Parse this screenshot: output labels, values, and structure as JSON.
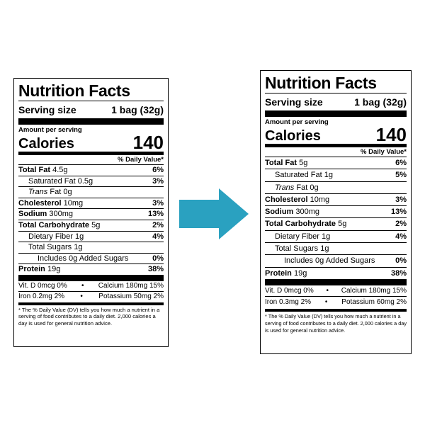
{
  "left": {
    "title": "Nutrition Facts",
    "serving_label": "Serving size",
    "serving_value": "1 bag (32g)",
    "amount_per_serving": "Amount per serving",
    "calories_label": "Calories",
    "calories_value": "140",
    "dv_header": "% Daily Value*",
    "total_fat_label": "Total Fat",
    "total_fat_amt": "4.5g",
    "total_fat_pct": "6%",
    "sat_fat_label": "Saturated Fat 0.5g",
    "sat_fat_pct": "3%",
    "trans_fat_label": "Trans",
    "trans_fat_rest": "Fat 0g",
    "chol_label": "Cholesterol",
    "chol_amt": "10mg",
    "chol_pct": "3%",
    "sodium_label": "Sodium",
    "sodium_amt": "300mg",
    "sodium_pct": "13%",
    "carb_label": "Total Carbohydrate",
    "carb_amt": "5g",
    "carb_pct": "2%",
    "fiber_label": "Dietary Fiber 1g",
    "fiber_pct": "4%",
    "sugars_label": "Total Sugars 1g",
    "added_label": "Includes 0g Added Sugars",
    "added_pct": "0%",
    "protein_label": "Protein",
    "protein_amt": "19g",
    "protein_pct": "38%",
    "vitd": "Vit. D 0mcg 0%",
    "calcium": "Calcium 180mg 15%",
    "iron": "Iron 0.2mg 2%",
    "potassium": "Potassium 50mg 2%",
    "footnote": "* The % Daily Value (DV) tells you how much a nutrient in a serving of food contributes to a daily diet. 2,000 calories a day is used for general nutrition advice."
  },
  "right": {
    "title": "Nutrition Facts",
    "serving_label": "Serving size",
    "serving_value": "1 bag (32g)",
    "amount_per_serving": "Amount per serving",
    "calories_label": "Calories",
    "calories_value": "140",
    "dv_header": "% Daily Value*",
    "total_fat_label": "Total Fat",
    "total_fat_amt": "5g",
    "total_fat_pct": "6%",
    "sat_fat_label": "Saturated Fat 1g",
    "sat_fat_pct": "5%",
    "trans_fat_label": "Trans",
    "trans_fat_rest": "Fat 0g",
    "chol_label": "Cholesterol",
    "chol_amt": "10mg",
    "chol_pct": "3%",
    "sodium_label": "Sodium",
    "sodium_amt": "300mg",
    "sodium_pct": "13%",
    "carb_label": "Total Carbohydrate",
    "carb_amt": "5g",
    "carb_pct": "2%",
    "fiber_label": "Dietary Fiber 1g",
    "fiber_pct": "4%",
    "sugars_label": "Total Sugars 1g",
    "added_label": "Includes 0g Added Sugars",
    "added_pct": "0%",
    "protein_label": "Protein",
    "protein_amt": "19g",
    "protein_pct": "38%",
    "vitd": "Vit. D 0mcg 0%",
    "calcium": "Calcium 180mg 15%",
    "iron": "Iron 0.3mg 2%",
    "potassium": "Potassium 60mg 2%",
    "footnote": "* The % Daily Value (DV) tells you how much a nutrient in a serving of food contributes to a daily diet. 2,000 calories a day is used for general nutrition advice."
  },
  "arrow": {
    "icon": "arrow-right-icon",
    "color": "#2aa1c0"
  },
  "vitamin_separator": "•"
}
